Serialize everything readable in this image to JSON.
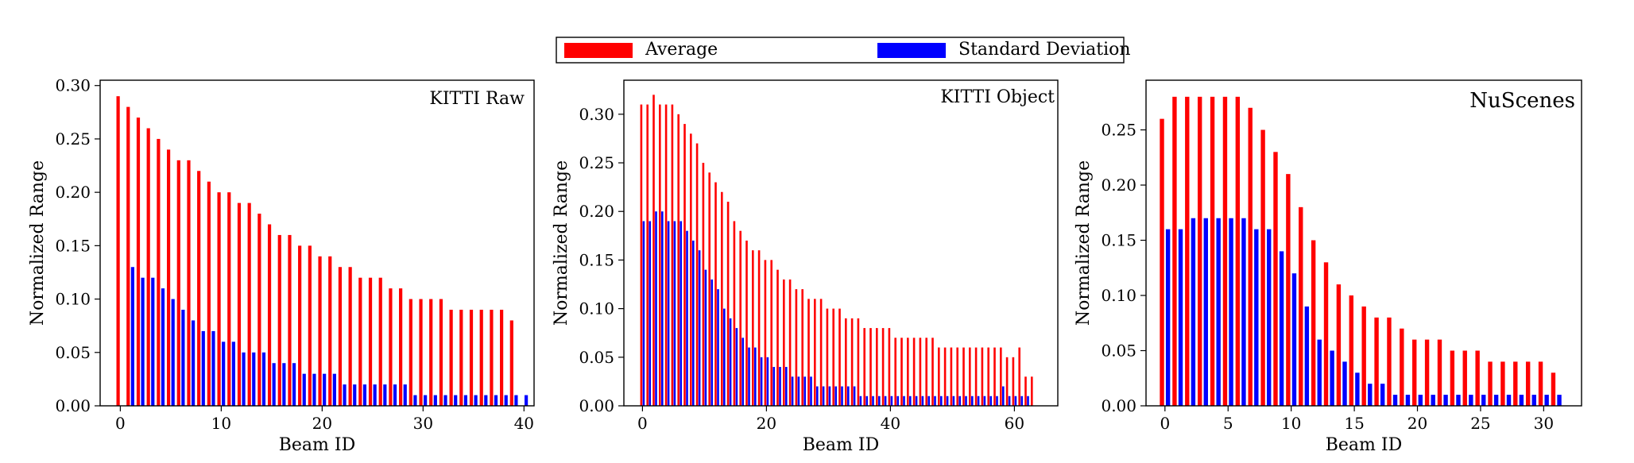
{
  "colors": {
    "average": "#ff0000",
    "std": "#0000ff",
    "axis": "#000000"
  },
  "legend": {
    "placement": "top-center",
    "entries": [
      {
        "label": "Average",
        "color": "#ff0000"
      },
      {
        "label": "Standard Deviation",
        "color": "#0000ff"
      }
    ]
  },
  "chart_data": [
    {
      "type": "bar",
      "title": "KITTI Raw",
      "xlabel": "Beam ID",
      "ylabel": "Normalized Range",
      "xlim": [
        -2,
        41
      ],
      "ylim": [
        0,
        0.305
      ],
      "xticks": [
        0,
        10,
        20,
        30,
        40
      ],
      "yticks": [
        0.0,
        0.05,
        0.1,
        0.15,
        0.2,
        0.25,
        0.3
      ],
      "x": [
        0,
        1,
        2,
        3,
        4,
        5,
        6,
        7,
        8,
        9,
        10,
        11,
        12,
        13,
        14,
        15,
        16,
        17,
        18,
        19,
        20,
        21,
        22,
        23,
        24,
        25,
        26,
        27,
        28,
        29,
        30,
        31,
        32,
        33,
        34,
        35,
        36,
        37,
        38,
        39,
        40
      ],
      "series": [
        {
          "name": "Average",
          "values": [
            0.29,
            0.28,
            0.27,
            0.26,
            0.25,
            0.24,
            0.23,
            0.23,
            0.22,
            0.21,
            0.2,
            0.2,
            0.19,
            0.19,
            0.18,
            0.17,
            0.16,
            0.16,
            0.15,
            0.15,
            0.14,
            0.14,
            0.13,
            0.13,
            0.12,
            0.12,
            0.12,
            0.11,
            0.11,
            0.1,
            0.1,
            0.1,
            0.1,
            0.09,
            0.09,
            0.09,
            0.09,
            0.09,
            0.09,
            0.08,
            null
          ]
        },
        {
          "name": "Standard Deviation",
          "values": [
            null,
            0.13,
            0.12,
            0.12,
            0.11,
            0.1,
            0.09,
            0.08,
            0.07,
            0.07,
            0.06,
            0.06,
            0.05,
            0.05,
            0.05,
            0.04,
            0.04,
            0.04,
            0.03,
            0.03,
            0.03,
            0.03,
            0.02,
            0.02,
            0.02,
            0.02,
            0.02,
            0.02,
            0.02,
            0.01,
            0.01,
            0.01,
            0.01,
            0.01,
            0.01,
            0.01,
            0.01,
            0.01,
            0.01,
            0.01,
            0.01
          ]
        }
      ]
    },
    {
      "type": "bar",
      "title": "KITTI Object",
      "xlabel": "Beam ID",
      "ylabel": "Normalized Range",
      "xlim": [
        -3,
        67
      ],
      "ylim": [
        0,
        0.335
      ],
      "xticks": [
        0,
        20,
        40,
        60
      ],
      "yticks": [
        0.0,
        0.05,
        0.1,
        0.15,
        0.2,
        0.25,
        0.3
      ],
      "x": [
        0,
        1,
        2,
        3,
        4,
        5,
        6,
        7,
        8,
        9,
        10,
        11,
        12,
        13,
        14,
        15,
        16,
        17,
        18,
        19,
        20,
        21,
        22,
        23,
        24,
        25,
        26,
        27,
        28,
        29,
        30,
        31,
        32,
        33,
        34,
        35,
        36,
        37,
        38,
        39,
        40,
        41,
        42,
        43,
        44,
        45,
        46,
        47,
        48,
        49,
        50,
        51,
        52,
        53,
        54,
        55,
        56,
        57,
        58,
        59,
        60,
        61,
        62,
        63
      ],
      "series": [
        {
          "name": "Average",
          "values": [
            0.31,
            0.31,
            0.32,
            0.31,
            0.31,
            0.31,
            0.3,
            0.29,
            0.28,
            0.27,
            0.25,
            0.24,
            0.23,
            0.22,
            0.21,
            0.19,
            0.18,
            0.17,
            0.16,
            0.16,
            0.15,
            0.15,
            0.14,
            0.13,
            0.13,
            0.12,
            0.12,
            0.11,
            0.11,
            0.11,
            0.1,
            0.1,
            0.1,
            0.09,
            0.09,
            0.09,
            0.08,
            0.08,
            0.08,
            0.08,
            0.08,
            0.07,
            0.07,
            0.07,
            0.07,
            0.07,
            0.07,
            0.07,
            0.06,
            0.06,
            0.06,
            0.06,
            0.06,
            0.06,
            0.06,
            0.06,
            0.06,
            0.06,
            0.06,
            0.05,
            0.05,
            0.06,
            0.03,
            0.03
          ]
        },
        {
          "name": "Standard Deviation",
          "values": [
            0.19,
            0.19,
            0.2,
            0.2,
            0.19,
            0.19,
            0.19,
            0.18,
            0.17,
            0.16,
            0.14,
            0.13,
            0.12,
            0.1,
            0.09,
            0.08,
            0.07,
            0.06,
            0.06,
            0.05,
            0.05,
            0.04,
            0.04,
            0.04,
            0.03,
            0.03,
            0.03,
            0.03,
            0.02,
            0.02,
            0.02,
            0.02,
            0.02,
            0.02,
            0.02,
            0.01,
            0.01,
            0.01,
            0.01,
            0.01,
            0.01,
            0.01,
            0.01,
            0.01,
            0.01,
            0.01,
            0.01,
            0.01,
            0.01,
            0.01,
            0.01,
            0.01,
            0.01,
            0.01,
            0.01,
            0.01,
            0.01,
            0.01,
            0.02,
            0.01,
            0.01,
            0.01,
            0.01,
            null
          ]
        }
      ]
    },
    {
      "type": "bar",
      "title": "NuScenes",
      "xlabel": "Beam ID",
      "ylabel": "Normalized Range",
      "xlim": [
        -1.5,
        33
      ],
      "ylim": [
        0,
        0.295
      ],
      "xticks": [
        0,
        5,
        10,
        15,
        20,
        25,
        30
      ],
      "yticks": [
        0.0,
        0.05,
        0.1,
        0.15,
        0.2,
        0.25
      ],
      "x": [
        0,
        1,
        2,
        3,
        4,
        5,
        6,
        7,
        8,
        9,
        10,
        11,
        12,
        13,
        14,
        15,
        16,
        17,
        18,
        19,
        20,
        21,
        22,
        23,
        24,
        25,
        26,
        27,
        28,
        29,
        30,
        31
      ],
      "series": [
        {
          "name": "Average",
          "values": [
            0.26,
            0.28,
            0.28,
            0.28,
            0.28,
            0.28,
            0.28,
            0.27,
            0.25,
            0.23,
            0.21,
            0.18,
            0.15,
            0.13,
            0.11,
            0.1,
            0.09,
            0.08,
            0.08,
            0.07,
            0.06,
            0.06,
            0.06,
            0.05,
            0.05,
            0.05,
            0.04,
            0.04,
            0.04,
            0.04,
            0.04,
            0.03
          ]
        },
        {
          "name": "Standard Deviation",
          "values": [
            0.16,
            0.16,
            0.17,
            0.17,
            0.17,
            0.17,
            0.17,
            0.16,
            0.16,
            0.14,
            0.12,
            0.09,
            0.06,
            0.05,
            0.04,
            0.03,
            0.02,
            0.02,
            0.01,
            0.01,
            0.01,
            0.01,
            0.01,
            0.01,
            0.01,
            0.01,
            0.01,
            0.01,
            0.01,
            0.01,
            0.01,
            0.01
          ]
        }
      ]
    }
  ]
}
